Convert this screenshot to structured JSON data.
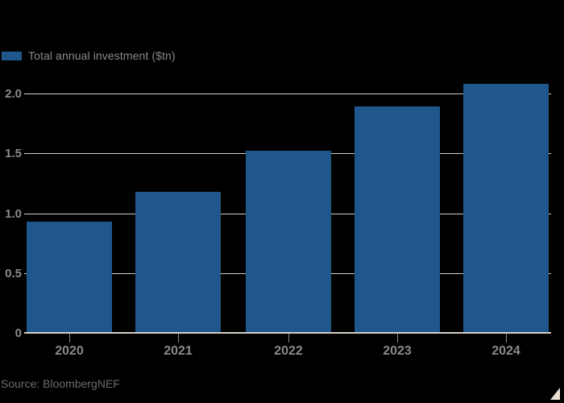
{
  "chart_data": {
    "type": "bar",
    "title": "",
    "legend": "Total annual investment ($tn)",
    "categories": [
      "2020",
      "2021",
      "2022",
      "2023",
      "2024"
    ],
    "values": [
      0.93,
      1.18,
      1.52,
      1.89,
      2.08
    ],
    "xlabel": "",
    "ylabel": "Total annual investment ($tn)",
    "ylim": [
      0,
      2.2
    ],
    "yticks": [
      {
        "value": 0,
        "label": "0"
      },
      {
        "value": 0.5,
        "label": "0.5"
      },
      {
        "value": 1.0,
        "label": "1.0"
      },
      {
        "value": 1.5,
        "label": "1.5"
      },
      {
        "value": 2.0,
        "label": "2.0"
      }
    ],
    "grid": true,
    "legend_position": "top-left"
  },
  "source": {
    "label": "Source: BloombergNEF"
  },
  "colors": {
    "background": "#000000",
    "bar": "#1F568B",
    "gridline": "#D6CDC4",
    "axis_label": "#8A8A8A",
    "legend_text": "#8A8A8A",
    "source_text": "#6F6B67",
    "corner_mark": "#EADFD3"
  }
}
